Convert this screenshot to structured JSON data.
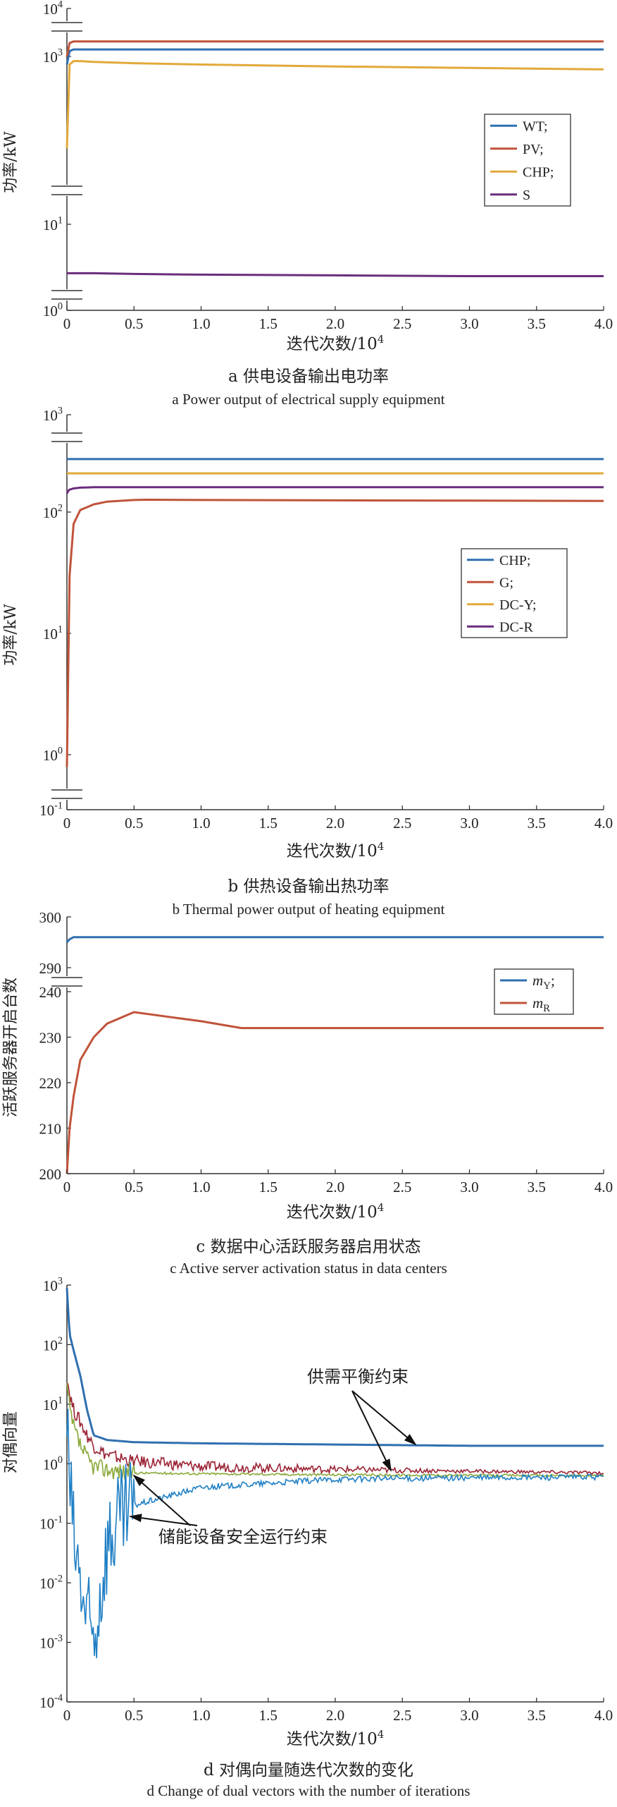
{
  "chart_data": [
    {
      "type": "line",
      "panel": "a",
      "yscale": "log",
      "y_tick_labels": [
        "10^0",
        "10^1",
        "10^3",
        "10^4"
      ],
      "x_tick_labels": [
        "0",
        "0.5",
        "1.0",
        "1.5",
        "2.0",
        "2.5",
        "3.0",
        "3.5",
        "4.0"
      ],
      "xlim": [
        0,
        4.0
      ],
      "xlabel": "迭代次数/10^4",
      "ylabel": "功率/kW",
      "legend_position": "right-middle",
      "x": [
        0,
        0.02,
        0.05,
        0.1,
        0.2,
        0.5,
        1.0,
        2.0,
        3.0,
        4.0
      ],
      "series": [
        {
          "name": "WT;",
          "color": "#2f6fb0",
          "values": [
            800,
            1300,
            1400,
            1400,
            1400,
            1400,
            1400,
            1400,
            1400,
            1400
          ]
        },
        {
          "name": "PV;",
          "color": "#c0533a",
          "values": [
            1000,
            1900,
            2050,
            2050,
            2050,
            2050,
            2050,
            2050,
            2050,
            2050
          ]
        },
        {
          "name": "CHP;",
          "color": "#e2a93a",
          "values": [
            80,
            800,
            880,
            880,
            860,
            830,
            800,
            760,
            730,
            700
          ]
        },
        {
          "name": "S",
          "color": "#6a2d7d",
          "values": [
            2.7,
            2.7,
            2.7,
            2.7,
            2.7,
            2.65,
            2.6,
            2.55,
            2.5,
            2.5
          ]
        }
      ]
    },
    {
      "type": "line",
      "panel": "b",
      "yscale": "log",
      "y_tick_labels": [
        "10^-1",
        "10^0",
        "10^1",
        "10^2",
        "10^3"
      ],
      "x_tick_labels": [
        "0",
        "0.5",
        "1.0",
        "1.5",
        "2.0",
        "2.5",
        "3.0",
        "3.5",
        "4.0"
      ],
      "xlim": [
        0,
        4.0
      ],
      "xlabel": "迭代次数/10^4",
      "ylabel": "功率/kW",
      "legend_position": "right-middle",
      "x": [
        0,
        0.01,
        0.02,
        0.05,
        0.1,
        0.2,
        0.3,
        0.5,
        0.6,
        1.0,
        2.0,
        3.0,
        4.0
      ],
      "series": [
        {
          "name": "CHP;",
          "color": "#2f6fb0",
          "values": [
            350,
            350,
            350,
            350,
            350,
            350,
            350,
            350,
            350,
            350,
            350,
            350,
            350
          ]
        },
        {
          "name": "G;",
          "color": "#c0533a",
          "values": [
            0.6,
            5,
            30,
            80,
            105,
            120,
            128,
            133,
            134,
            133,
            132,
            131,
            130
          ]
        },
        {
          "name": "DC-Y;",
          "color": "#e2a93a",
          "values": [
            250,
            250,
            250,
            250,
            250,
            250,
            250,
            250,
            250,
            250,
            250,
            250,
            250
          ]
        },
        {
          "name": "DC-R",
          "color": "#6a2d7d",
          "values": [
            155,
            165,
            170,
            175,
            178,
            180,
            180,
            180,
            180,
            180,
            180,
            180,
            180
          ]
        }
      ]
    },
    {
      "type": "line",
      "panel": "c",
      "y_tick_labels": [
        "200",
        "210",
        "220",
        "230",
        "240",
        "290",
        "300"
      ],
      "x_tick_labels": [
        "0",
        "0.5",
        "1.0",
        "1.5",
        "2.0",
        "2.5",
        "3.0",
        "3.5",
        "4.0"
      ],
      "xlim": [
        0,
        4.0
      ],
      "xlabel": "迭代次数/10^4",
      "ylabel": "活跃服务器开启台数",
      "legend_position": "top-right",
      "x": [
        0,
        0.02,
        0.05,
        0.1,
        0.2,
        0.3,
        0.5,
        0.8,
        1.0,
        1.3,
        2.0,
        3.0,
        4.0
      ],
      "series": [
        {
          "name": "mY",
          "color": "#2f6fb0",
          "values": [
            295,
            295.6,
            296,
            296,
            296,
            296,
            296,
            296,
            296,
            296,
            296,
            296,
            296
          ]
        },
        {
          "name": "mR",
          "color": "#c0533a",
          "values": [
            200,
            210,
            217,
            225,
            230,
            233,
            235.5,
            234.3,
            233.5,
            232,
            232,
            232,
            232
          ]
        }
      ]
    },
    {
      "type": "line",
      "panel": "d",
      "yscale": "log",
      "y_tick_labels": [
        "10^-4",
        "10^-3",
        "10^-2",
        "10^-1",
        "10^0",
        "10^1",
        "10^2",
        "10^3"
      ],
      "x_tick_labels": [
        "0",
        "0.5",
        "1.0",
        "1.5",
        "2.0",
        "2.5",
        "3.0",
        "3.5",
        "4.0"
      ],
      "xlim": [
        0,
        4.0
      ],
      "xlabel": "迭代次数/10^4",
      "ylabel": "对偶向量",
      "x": [
        0,
        0.02,
        0.05,
        0.1,
        0.15,
        0.2,
        0.3,
        0.5,
        1.0,
        2.0,
        3.0,
        4.0
      ],
      "series": [
        {
          "color": "#2f6fb0",
          "values": [
            900,
            150,
            80,
            30,
            8,
            3,
            2.5,
            2.3,
            2.2,
            2.1,
            2.0,
            2.0
          ]
        },
        {
          "color": "#9b2335",
          "values": [
            30,
            15,
            8,
            5,
            3,
            2,
            1.4,
            1.1,
            0.9,
            0.8,
            0.75,
            0.7
          ]
        },
        {
          "color": "#8aa83a",
          "values": [
            20,
            8,
            4,
            2,
            1.2,
            0.9,
            0.8,
            0.7,
            0.68,
            0.65,
            0.64,
            0.63
          ]
        },
        {
          "color": "#1f7fc4",
          "values": [
            5,
            0.5,
            0.05,
            0.01,
            0.002,
            0.001,
            0.05,
            0.2,
            0.4,
            0.55,
            0.58,
            0.6
          ]
        }
      ],
      "annotations": [
        "供需平衡约束",
        "储能设备安全运行约束"
      ]
    }
  ],
  "captions": {
    "a_cn": "a 供电设备输出电功率",
    "a_en": "a Power output of electrical supply equipment",
    "b_cn": "b 供热设备输出热功率",
    "b_en": "b Thermal power output of heating equipment",
    "c_cn": "c 数据中心活跃服务器启用状态",
    "c_en": "c Active server activation status in data centers",
    "d_cn": "d 对偶向量随迭代次数的变化",
    "d_en": "d Change of dual vectors with the number of iterations"
  }
}
